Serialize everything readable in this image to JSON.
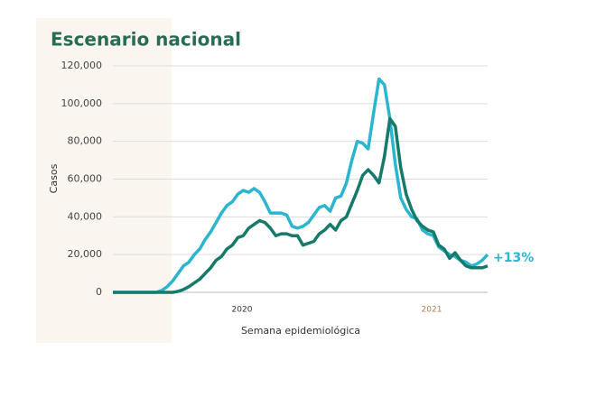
{
  "chart_data": {
    "type": "line",
    "title": "Escenario nacional",
    "ylabel": "Casos",
    "xlabel": "Semana epidemiológica",
    "annotations": [
      "2020",
      "2021",
      "+13%"
    ],
    "categories": [
      null,
      null,
      null,
      null,
      null,
      null,
      null,
      null,
      null,
      null,
      null,
      null,
      null,
      null,
      null,
      null,
      null,
      null,
      null,
      null,
      null,
      null,
      null,
      null,
      null,
      null,
      null,
      null,
      null,
      null,
      null,
      null,
      null,
      null,
      null,
      null,
      null,
      null,
      null,
      null,
      null,
      null,
      null,
      null,
      null,
      null,
      null,
      null,
      null,
      null,
      null,
      null,
      null,
      null,
      null,
      null,
      null,
      null,
      null,
      null,
      null,
      null,
      null,
      null,
      null,
      null,
      null,
      null,
      null,
      null
    ],
    "series": [
      {
        "color": "#2bb5cf",
        "values": [
          0,
          0,
          0,
          0,
          0,
          0,
          0,
          0,
          0,
          1000,
          3000,
          6000,
          10000,
          14000,
          16000,
          20000,
          23000,
          28000,
          32000,
          37000,
          42000,
          46000,
          48000,
          52000,
          54000,
          53000,
          55000,
          53000,
          48000,
          42000,
          42000,
          42000,
          41000,
          35000,
          34000,
          35000,
          37000,
          41000,
          45000,
          46000,
          43000,
          50000,
          51000,
          58000,
          70000,
          80000,
          79000,
          76000,
          95000,
          113000,
          110000,
          92000,
          68000,
          50000,
          44000,
          40000,
          39000,
          33000,
          31000,
          30000,
          24000,
          22000,
          20000,
          19000,
          17000,
          16000,
          14000,
          15000,
          17000,
          20000
        ]
      },
      {
        "color": "#167a6a",
        "values": [
          0,
          0,
          0,
          0,
          0,
          0,
          0,
          0,
          0,
          0,
          0,
          0,
          500,
          1500,
          3000,
          5000,
          7000,
          10000,
          13000,
          17000,
          19000,
          23000,
          25000,
          29000,
          30000,
          34000,
          36000,
          38000,
          37000,
          34000,
          30000,
          31000,
          31000,
          30000,
          30000,
          25000,
          26000,
          27000,
          31000,
          33000,
          36000,
          33000,
          38000,
          40000,
          47000,
          54000,
          62000,
          65000,
          62000,
          58000,
          72000,
          92000,
          88000,
          66000,
          52000,
          44000,
          38000,
          35000,
          33000,
          32000,
          25000,
          23000,
          18000,
          21000,
          17000,
          14000,
          13000,
          13000,
          13000,
          14000
        ]
      }
    ],
    "ylim": [
      0,
      120000
    ],
    "yticks": [
      0,
      {
        "value": 20000,
        "label": "20,000"
      },
      {
        "value": 40000,
        "label": "40,000"
      },
      {
        "value": 60000,
        "label": "60,000"
      },
      {
        "value": 80000,
        "label": "80,000"
      },
      {
        "value": 100000,
        "label": "100,000"
      },
      {
        "value": 120000,
        "label": "120,000"
      }
    ],
    "grid": true
  }
}
